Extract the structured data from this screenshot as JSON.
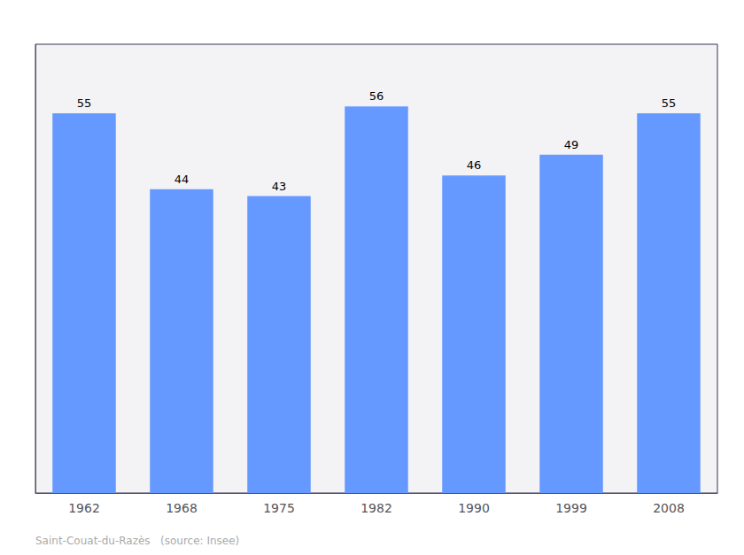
{
  "chart_data": {
    "type": "bar",
    "categories": [
      "1962",
      "1968",
      "1975",
      "1982",
      "1990",
      "1999",
      "2008"
    ],
    "values": [
      55,
      44,
      43,
      56,
      46,
      49,
      55
    ],
    "color": "#6699ff",
    "ylim": [
      0,
      65
    ],
    "grid": false,
    "data_labels": true,
    "tick_labels": "x",
    "annotations": [
      "Saint-Couat-du-Razès   (source: Insee)"
    ]
  }
}
